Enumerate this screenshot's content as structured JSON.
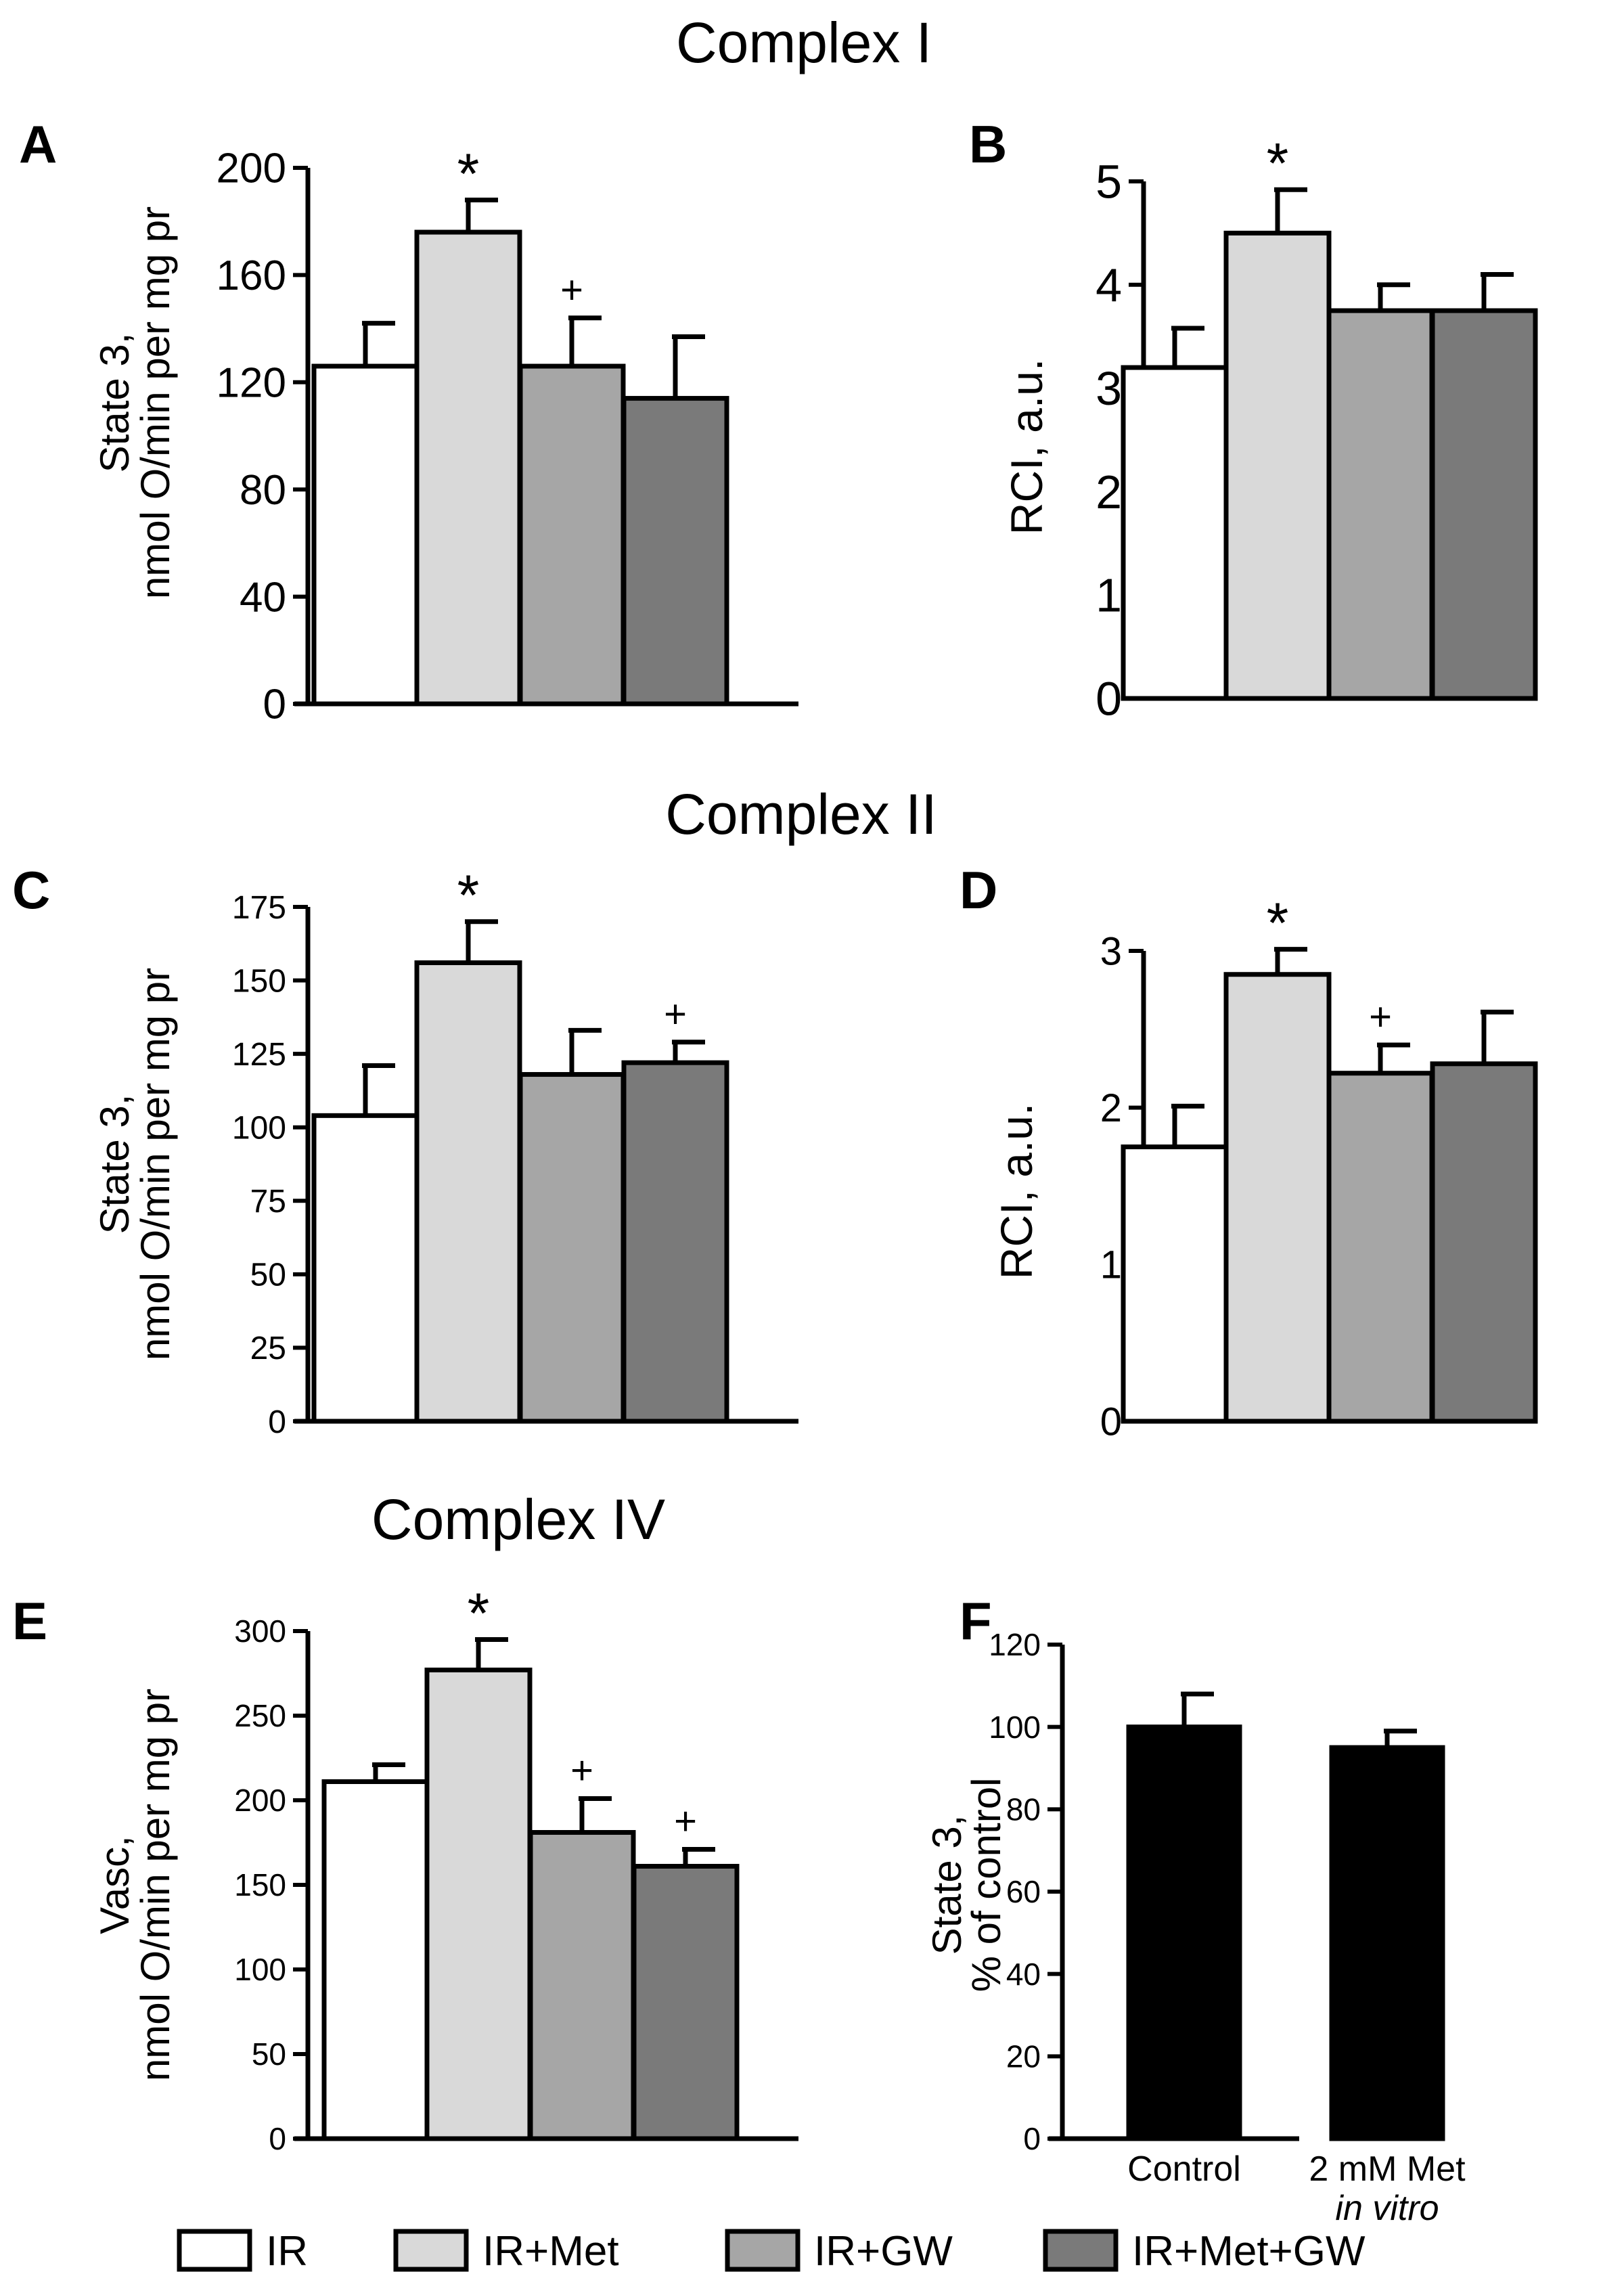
{
  "section_titles": [
    "Complex I",
    "Complex II",
    "Complex IV"
  ],
  "groups": [
    {
      "name": "IR",
      "color": "#ffffff"
    },
    {
      "name": "IR+Met",
      "color": "#d9d9d9"
    },
    {
      "name": "IR+GW",
      "color": "#a6a6a6"
    },
    {
      "name": "IR+Met+GW",
      "color": "#7a7a7a"
    }
  ],
  "chart_data": [
    {
      "panel": "A",
      "type": "bar",
      "section": "Complex I",
      "ylabel": [
        "State 3,",
        "nmol O/min per mg pr"
      ],
      "ylim": [
        0,
        200
      ],
      "yticks": [
        0,
        40,
        80,
        120,
        160,
        200
      ],
      "categories": [
        "IR",
        "IR+Met",
        "IR+GW",
        "IR+Met+GW"
      ],
      "values": [
        126,
        176,
        126,
        114
      ],
      "errors": [
        16,
        12,
        18,
        23
      ],
      "marks": [
        "",
        "*",
        "+",
        ""
      ]
    },
    {
      "panel": "B",
      "type": "bar",
      "section": "Complex I",
      "ylabel": [
        "RCI, a.u."
      ],
      "ylim": [
        0,
        5
      ],
      "yticks": [
        0,
        1,
        2,
        3,
        4,
        5
      ],
      "categories": [
        "IR",
        "IR+Met",
        "IR+GW",
        "IR+Met+GW"
      ],
      "values": [
        3.2,
        4.5,
        3.75,
        3.75
      ],
      "errors": [
        0.38,
        0.42,
        0.25,
        0.35
      ],
      "marks": [
        "",
        "*",
        "",
        ""
      ]
    },
    {
      "panel": "C",
      "type": "bar",
      "section": "Complex II",
      "ylabel": [
        "State 3,",
        "nmol O/min per mg pr"
      ],
      "ylim": [
        0,
        175
      ],
      "yticks": [
        0,
        25,
        50,
        75,
        100,
        125,
        150,
        175
      ],
      "categories": [
        "IR",
        "IR+Met",
        "IR+GW",
        "IR+Met+GW"
      ],
      "values": [
        104,
        156,
        118,
        122
      ],
      "errors": [
        17,
        14,
        15,
        7
      ],
      "marks": [
        "",
        "*",
        "",
        "+"
      ]
    },
    {
      "panel": "D",
      "type": "bar",
      "section": "Complex II",
      "ylabel": [
        "RCI, a.u."
      ],
      "ylim": [
        0,
        3
      ],
      "yticks": [
        0,
        1,
        2,
        3
      ],
      "categories": [
        "IR",
        "IR+Met",
        "IR+GW",
        "IR+Met+GW"
      ],
      "values": [
        1.75,
        2.85,
        2.22,
        2.28
      ],
      "errors": [
        0.26,
        0.16,
        0.18,
        0.33
      ],
      "marks": [
        "",
        "*",
        "+",
        ""
      ]
    },
    {
      "panel": "E",
      "type": "bar",
      "section": "Complex IV",
      "ylabel": [
        "Vasc,",
        "nmol O/min per mg pr"
      ],
      "ylim": [
        0,
        300
      ],
      "yticks": [
        0,
        50,
        100,
        150,
        200,
        250,
        300
      ],
      "categories": [
        "IR",
        "IR+Met",
        "IR+GW",
        "IR+Met+GW"
      ],
      "values": [
        211,
        277,
        181,
        161
      ],
      "errors": [
        10,
        18,
        20,
        10
      ],
      "marks": [
        "",
        "*",
        "+",
        "+"
      ]
    },
    {
      "panel": "F",
      "type": "bar",
      "ylabel": [
        "State 3,",
        "% of control"
      ],
      "ylim": [
        0,
        120
      ],
      "yticks": [
        0,
        20,
        40,
        60,
        80,
        100,
        120
      ],
      "categories": [
        "Control",
        "2 mM Met"
      ],
      "category_sublabels": [
        "",
        "in vitro"
      ],
      "values": [
        100,
        95
      ],
      "errors": [
        8,
        4
      ],
      "marks": [
        "",
        ""
      ],
      "bar_color": "#000000"
    }
  ]
}
